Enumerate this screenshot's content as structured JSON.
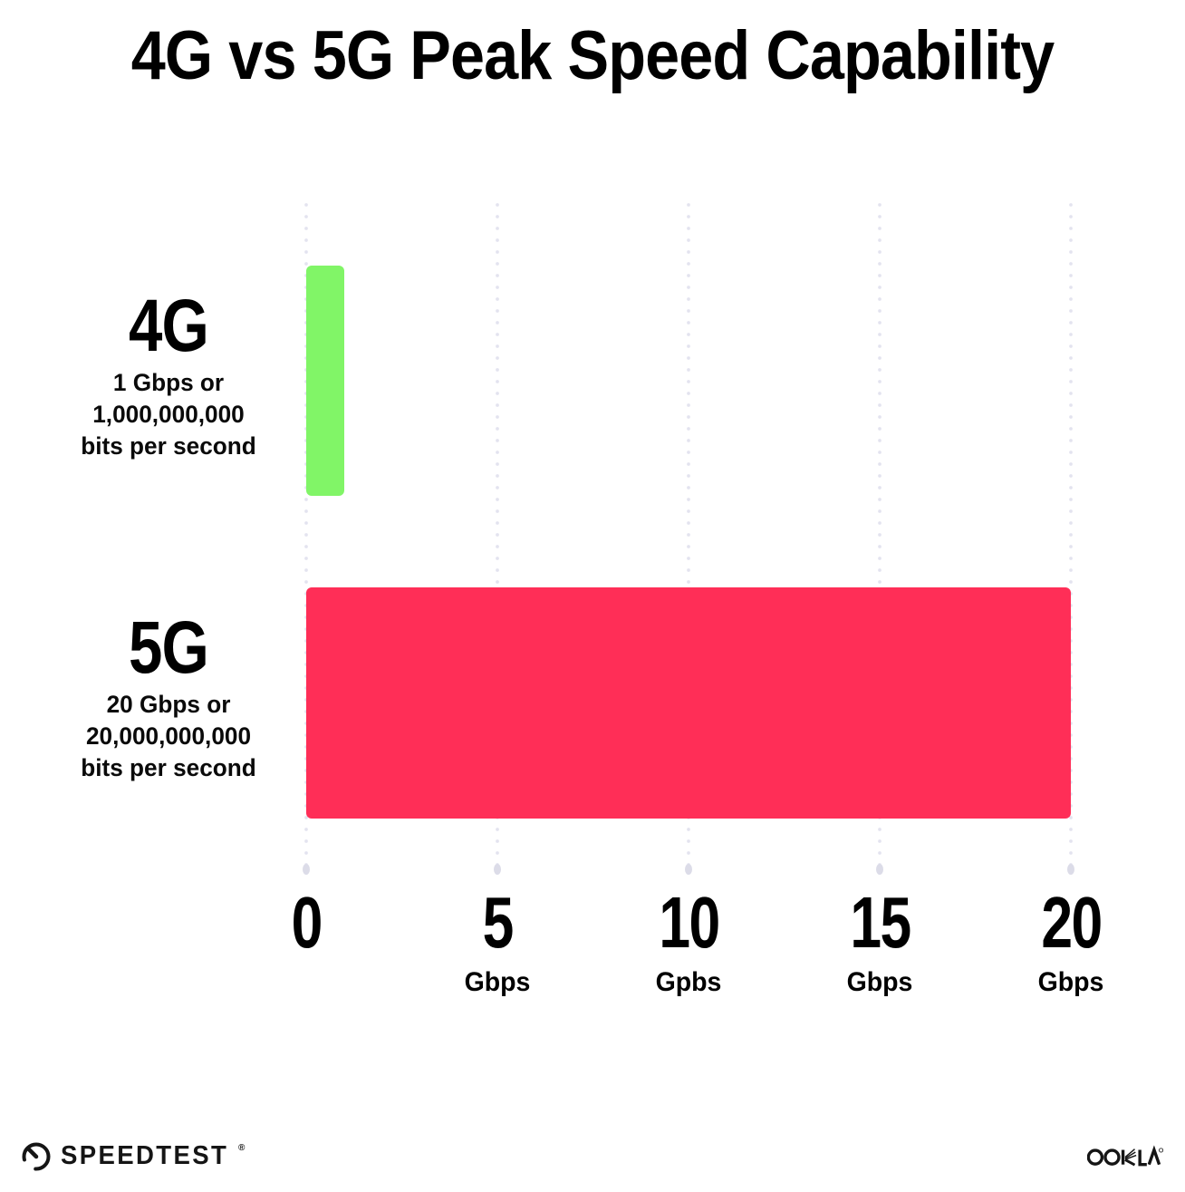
{
  "title": "4G vs 5G Peak Speed Capability",
  "chart_data": {
    "type": "bar",
    "orientation": "horizontal",
    "title": "4G vs 5G Peak Speed Capability",
    "categories": [
      "4G",
      "5G"
    ],
    "values": [
      1,
      20
    ],
    "value_unit": "Gbps",
    "xlim": [
      0,
      20
    ],
    "bar_colors": [
      "#81F567",
      "#FF2E57"
    ],
    "grid": {
      "style": "dotted-vertical",
      "color": "#E3E3EF",
      "position": "behind-bars"
    },
    "legend": "none",
    "x_ticks": [
      {
        "value": 0,
        "label": "0",
        "unit": ""
      },
      {
        "value": 5,
        "label": "5",
        "unit": "Gbps"
      },
      {
        "value": 10,
        "label": "10",
        "unit": "Gpbs"
      },
      {
        "value": 15,
        "label": "15",
        "unit": "Gbps"
      },
      {
        "value": 20,
        "label": "20",
        "unit": "Gbps"
      }
    ],
    "series_labels": [
      {
        "name": "4G",
        "lines": [
          "1 Gbps or",
          "1,000,000,000",
          "bits per second"
        ]
      },
      {
        "name": "5G",
        "lines": [
          "20 Gbps or",
          "20,000,000,000",
          "bits per second"
        ]
      }
    ]
  },
  "footer": {
    "speedtest": "SPEEDTEST",
    "ookla": "OOKLA",
    "trademark": "®"
  }
}
